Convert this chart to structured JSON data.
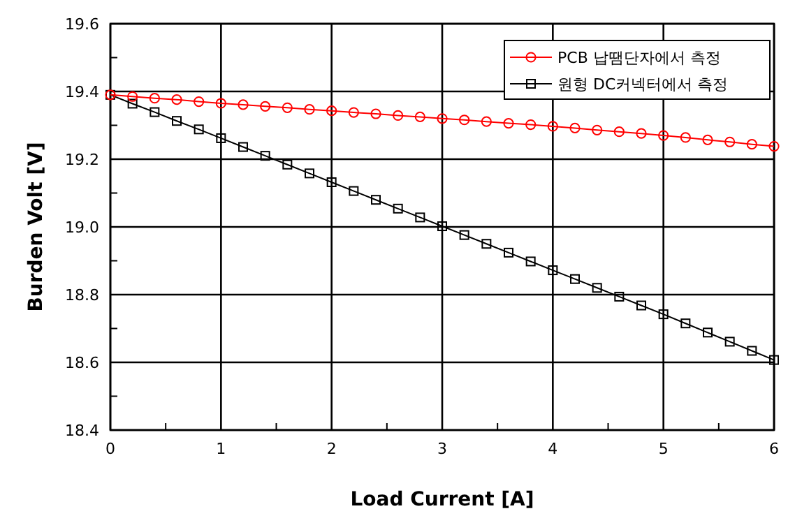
{
  "chart_data": {
    "type": "line",
    "xlabel": "Load Current [A]",
    "ylabel": "Burden Volt [V]",
    "x": [
      0,
      0.2,
      0.4,
      0.6,
      0.8,
      1,
      1.2,
      1.4,
      1.6,
      1.8,
      2,
      2.2,
      2.4,
      2.6,
      2.8,
      3,
      3.2,
      3.4,
      3.6,
      3.8,
      4,
      4.2,
      4.4,
      4.6,
      4.8,
      5,
      5.2,
      5.4,
      5.6,
      5.8,
      6
    ],
    "series": [
      {
        "name": "PCB 납땜단자에서 측정",
        "color": "#ff0000",
        "marker": "circle",
        "values": [
          19.39,
          19.385,
          19.38,
          19.376,
          19.37,
          19.365,
          19.361,
          19.356,
          19.352,
          19.347,
          19.343,
          19.338,
          19.334,
          19.329,
          19.325,
          19.32,
          19.316,
          19.311,
          19.306,
          19.302,
          19.297,
          19.292,
          19.286,
          19.281,
          19.276,
          19.27,
          19.264,
          19.257,
          19.251,
          19.244,
          19.238
        ]
      },
      {
        "name": "원형 DC커넥터에서 측정",
        "color": "#000000",
        "marker": "square",
        "values": [
          19.39,
          19.364,
          19.339,
          19.313,
          19.288,
          19.262,
          19.236,
          19.21,
          19.184,
          19.158,
          19.132,
          19.106,
          19.08,
          19.054,
          19.028,
          19.002,
          18.976,
          18.95,
          18.924,
          18.898,
          18.872,
          18.846,
          18.82,
          18.794,
          18.768,
          18.742,
          18.715,
          18.688,
          18.661,
          18.634,
          18.607
        ]
      }
    ],
    "xlim": [
      0,
      6
    ],
    "xticks": [
      0,
      {
        "value": 0.5,
        "label": null
      },
      1,
      {
        "value": 1.5,
        "label": null
      },
      2,
      {
        "value": 2.5,
        "label": null
      },
      3,
      {
        "value": 3.5,
        "label": null
      },
      4,
      {
        "value": 4.5,
        "label": null
      },
      5,
      {
        "value": 5.5,
        "label": null
      },
      6
    ],
    "ylim": [
      18.4,
      19.6
    ],
    "yticks": [
      {
        "value": 18.4,
        "label": "18.4"
      },
      {
        "value": 18.5,
        "label": null
      },
      {
        "value": 18.6,
        "label": "18.6"
      },
      {
        "value": 18.7,
        "label": null
      },
      {
        "value": 18.8,
        "label": "18.8"
      },
      {
        "value": 18.9,
        "label": null
      },
      {
        "value": 19.0,
        "label": "19.0"
      },
      {
        "value": 19.1,
        "label": null
      },
      {
        "value": 19.2,
        "label": "19.2"
      },
      {
        "value": 19.3,
        "label": null
      },
      {
        "value": 19.4,
        "label": "19.4"
      },
      {
        "value": 19.5,
        "label": null
      },
      {
        "value": 19.6,
        "label": "19.6"
      }
    ],
    "grid": true,
    "legend": "top right",
    "line_style": "solid"
  }
}
